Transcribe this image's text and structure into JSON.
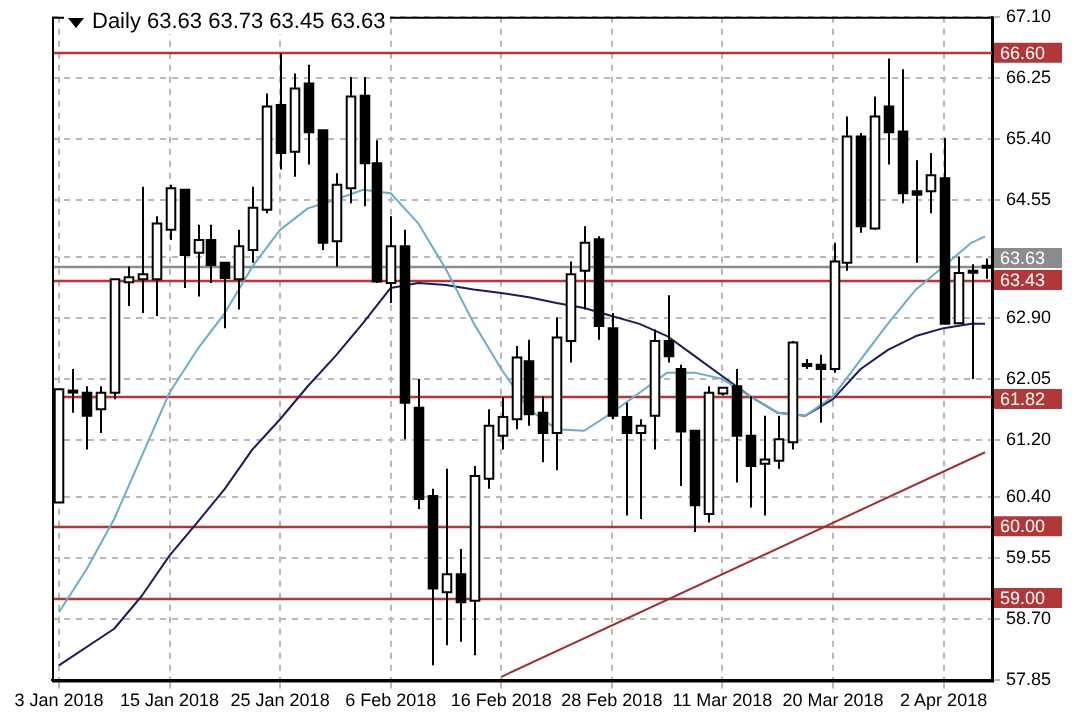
{
  "chart_data": {
    "type": "candlestick",
    "title": "Daily  63.63 63.73 63.45 63.63",
    "categories": [
      "3 Jan 2018",
      null,
      null,
      null,
      null,
      null,
      null,
      null,
      "15 Jan 2018",
      null,
      null,
      null,
      null,
      null,
      null,
      null,
      "25 Jan 2018",
      null,
      null,
      null,
      null,
      null,
      null,
      null,
      "6 Feb 2018",
      null,
      null,
      null,
      null,
      null,
      null,
      null,
      "16 Feb 2018",
      null,
      null,
      null,
      null,
      null,
      null,
      null,
      "28 Feb 2018",
      null,
      null,
      null,
      null,
      null,
      null,
      null,
      "11 Mar 2018",
      null,
      null,
      null,
      null,
      null,
      null,
      null,
      "20 Mar 2018",
      null,
      null,
      null,
      null,
      null,
      null,
      null,
      "2 Apr 2018",
      null,
      null,
      null
    ],
    "ohlc": [
      [
        60.33,
        61.91,
        60.33,
        61.91
      ],
      [
        61.89,
        62.19,
        61.58,
        61.89
      ],
      [
        61.86,
        61.95,
        61.07,
        61.54
      ],
      [
        61.63,
        61.95,
        61.3,
        61.86
      ],
      [
        61.86,
        63.44,
        61.77,
        63.44
      ],
      [
        63.4,
        63.62,
        63.07,
        63.47
      ],
      [
        63.44,
        64.73,
        62.97,
        63.51
      ],
      [
        63.44,
        64.32,
        62.93,
        64.22
      ],
      [
        64.13,
        64.76,
        63.99,
        64.71
      ],
      [
        64.69,
        64.69,
        63.32,
        63.78
      ],
      [
        63.81,
        64.2,
        63.2,
        63.99
      ],
      [
        63.99,
        64.2,
        63.39,
        63.64
      ],
      [
        63.67,
        63.67,
        62.76,
        63.46
      ],
      [
        63.44,
        64.13,
        63.02,
        63.9
      ],
      [
        63.85,
        64.73,
        63.67,
        64.44
      ],
      [
        64.41,
        66.03,
        64.36,
        65.85
      ],
      [
        65.87,
        66.59,
        64.97,
        65.2
      ],
      [
        65.22,
        66.31,
        64.87,
        66.1
      ],
      [
        66.17,
        66.43,
        65.04,
        65.49
      ],
      [
        65.52,
        65.52,
        63.85,
        63.95
      ],
      [
        63.97,
        64.92,
        63.62,
        64.76
      ],
      [
        64.71,
        66.26,
        64.5,
        65.99
      ],
      [
        66.0,
        66.26,
        64.46,
        65.06
      ],
      [
        65.06,
        65.38,
        63.39,
        63.41
      ],
      [
        63.39,
        64.32,
        63.11,
        63.9
      ],
      [
        63.9,
        64.13,
        61.21,
        61.72
      ],
      [
        61.65,
        62.05,
        60.24,
        60.38
      ],
      [
        60.42,
        60.52,
        58.06,
        59.13
      ],
      [
        59.08,
        60.8,
        58.34,
        59.33
      ],
      [
        59.33,
        59.68,
        58.39,
        58.94
      ],
      [
        58.96,
        60.84,
        58.2,
        60.7
      ],
      [
        60.66,
        61.63,
        60.52,
        61.4
      ],
      [
        61.26,
        61.8,
        61.07,
        61.52
      ],
      [
        61.49,
        62.51,
        61.35,
        62.35
      ],
      [
        62.3,
        62.6,
        61.4,
        61.56
      ],
      [
        61.58,
        61.81,
        60.89,
        61.3
      ],
      [
        61.3,
        62.91,
        60.78,
        62.63
      ],
      [
        62.58,
        63.69,
        62.28,
        63.51
      ],
      [
        63.56,
        64.18,
        63.02,
        63.95
      ],
      [
        64.0,
        64.04,
        62.6,
        62.79
      ],
      [
        62.76,
        62.97,
        61.49,
        61.54
      ],
      [
        61.52,
        61.72,
        60.15,
        61.3
      ],
      [
        61.3,
        61.49,
        60.1,
        61.4
      ],
      [
        61.54,
        62.74,
        61.07,
        62.58
      ],
      [
        62.58,
        63.22,
        62.28,
        62.37
      ],
      [
        62.19,
        62.25,
        60.56,
        61.32
      ],
      [
        61.33,
        61.33,
        59.92,
        60.29
      ],
      [
        60.17,
        61.95,
        60.05,
        61.86
      ],
      [
        61.85,
        61.93,
        61.82,
        61.93
      ],
      [
        61.95,
        62.19,
        60.61,
        61.26
      ],
      [
        61.26,
        61.81,
        60.26,
        60.84
      ],
      [
        60.87,
        61.54,
        60.15,
        60.93
      ],
      [
        60.91,
        61.54,
        60.8,
        61.21
      ],
      [
        61.17,
        62.58,
        61.07,
        62.56
      ],
      [
        62.25,
        62.33,
        62.19,
        62.26
      ],
      [
        62.25,
        62.39,
        61.44,
        62.19
      ],
      [
        62.19,
        63.95,
        62.14,
        63.69
      ],
      [
        63.67,
        65.71,
        63.56,
        65.43
      ],
      [
        65.43,
        65.48,
        64.09,
        64.18
      ],
      [
        64.15,
        65.99,
        64.13,
        65.71
      ],
      [
        65.85,
        66.52,
        65.04,
        65.49
      ],
      [
        65.5,
        66.37,
        64.5,
        64.64
      ],
      [
        64.67,
        65.1,
        63.67,
        64.62
      ],
      [
        64.67,
        65.2,
        64.36,
        64.89
      ],
      [
        64.85,
        65.41,
        62.82,
        62.82
      ],
      [
        62.83,
        63.76,
        62.83,
        63.53
      ],
      [
        63.56,
        63.65,
        62.05,
        63.56
      ],
      [
        63.63,
        63.73,
        63.45,
        63.63
      ]
    ],
    "series": [
      {
        "type": "line",
        "color": "#6aaec8",
        "values": [
          58.8,
          null,
          59.4,
          null,
          60.1,
          null,
          60.98,
          null,
          61.86,
          null,
          62.46,
          null,
          62.97,
          null,
          63.62,
          null,
          64.13,
          null,
          64.43,
          null,
          64.55,
          null,
          64.69,
          null,
          64.64,
          null,
          64.22,
          null,
          63.58,
          null,
          62.83,
          null,
          62.19,
          null,
          61.63,
          null,
          61.35,
          null,
          61.33,
          null,
          61.58,
          null,
          61.86,
          null,
          62.14,
          null,
          62.14,
          null,
          62.05,
          null,
          61.81,
          null,
          61.58,
          null,
          61.54,
          null,
          61.81,
          null,
          62.32,
          null,
          62.83,
          null,
          63.3,
          null,
          63.62,
          null,
          63.95,
          64.04
        ]
      },
      {
        "type": "line",
        "color": "#1c1c5c",
        "values": [
          58.06,
          null,
          null,
          null,
          58.57,
          null,
          59.03,
          null,
          59.59,
          null,
          60.05,
          null,
          60.52,
          null,
          61.07,
          null,
          61.49,
          null,
          61.95,
          null,
          62.37,
          null,
          62.83,
          null,
          63.32,
          null,
          63.39,
          null,
          63.36,
          null,
          63.3,
          null,
          63.25,
          null,
          63.19,
          null,
          63.11,
          null,
          63.04,
          null,
          62.93,
          null,
          62.82,
          null,
          62.65,
          null,
          62.37,
          null,
          62.09,
          null,
          61.81,
          null,
          61.58,
          null,
          61.54,
          null,
          61.77,
          null,
          62.19,
          null,
          62.46,
          null,
          62.65,
          null,
          62.76,
          null,
          62.82,
          62.82
        ]
      },
      {
        "type": "line",
        "color": "#a03030",
        "values": [
          null,
          null,
          null,
          null,
          null,
          null,
          null,
          null,
          null,
          null,
          null,
          null,
          null,
          null,
          null,
          null,
          null,
          null,
          null,
          null,
          null,
          null,
          null,
          null,
          null,
          null,
          null,
          null,
          null,
          null,
          null,
          null,
          57.9,
          null,
          null,
          null,
          null,
          null,
          null,
          null,
          null,
          null,
          null,
          null,
          null,
          null,
          null,
          null,
          null,
          null,
          null,
          null,
          null,
          null,
          null,
          null,
          null,
          null,
          null,
          null,
          null,
          null,
          null,
          null,
          null,
          null,
          null,
          61.03
        ]
      }
    ],
    "ylim": [
      57.85,
      67.1
    ],
    "yticks": [
      {
        "value": 67.1,
        "label": "67.10"
      },
      66.25,
      {
        "value": 65.4,
        "label": "65.40"
      },
      64.55,
      {
        "value": 63.75,
        "label": null
      },
      {
        "value": 62.9,
        "label": "62.90"
      },
      62.05,
      {
        "value": 61.2,
        "label": "61.20"
      },
      {
        "value": 60.4,
        "label": "60.40"
      },
      59.55,
      {
        "value": 58.7,
        "label": "58.70"
      },
      57.85
    ],
    "ref_lines": [
      {
        "axis": "y",
        "value": 66.6,
        "label": "66.60",
        "color": "#b03838"
      },
      {
        "axis": "y",
        "value": 63.63,
        "label": "63.63",
        "color": "#8c8c8c"
      },
      {
        "axis": "y",
        "value": 63.43,
        "label": "63.43",
        "color": "#b03838"
      },
      {
        "axis": "y",
        "value": 61.82,
        "label": "61.82",
        "color": "#b03838"
      },
      {
        "axis": "y",
        "value": 60.0,
        "label": "60.00",
        "color": "#b03838"
      },
      {
        "axis": "y",
        "value": 59.0,
        "label": "59.00",
        "color": "#b03838"
      }
    ],
    "grid": true,
    "line_style": "solid"
  }
}
